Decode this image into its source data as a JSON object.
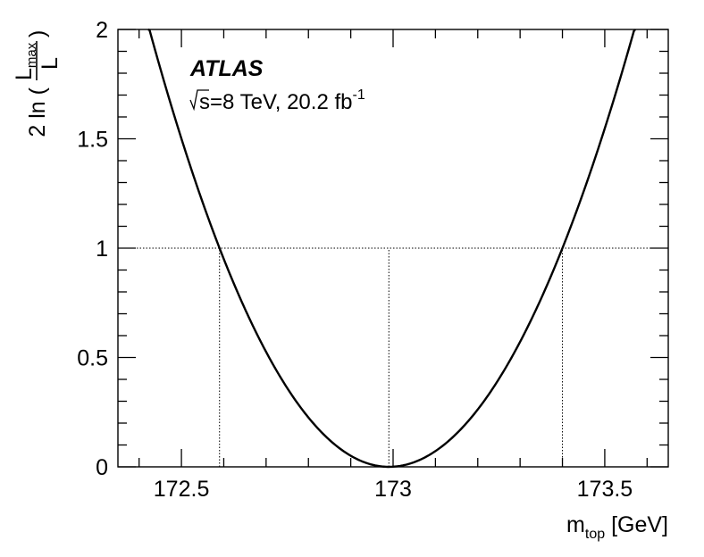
{
  "chart_data": {
    "type": "line",
    "xlabel": {
      "base": "m",
      "sub": "top",
      "rest": " [GeV]"
    },
    "ylabel": {
      "prefix": "2 ln (",
      "numerator_base": "L",
      "numerator_sub": "max",
      "denominator": "L",
      "suffix": ")"
    },
    "xlim": [
      172.35,
      173.65
    ],
    "ylim": [
      0,
      2
    ],
    "x_ticks": [
      {
        "value": 172.5,
        "label": "172.5"
      },
      {
        "value": 173,
        "label": "173"
      },
      {
        "value": 173.5,
        "label": "173.5"
      }
    ],
    "y_ticks": [
      {
        "value": 0,
        "label": "0"
      },
      {
        "value": 0.5,
        "label": "0.5"
      },
      {
        "value": 1,
        "label": "1"
      },
      {
        "value": 1.5,
        "label": "1.5"
      },
      {
        "value": 2,
        "label": "2"
      }
    ],
    "annotations": {
      "experiment": "ATLAS",
      "sqrt_s": "s",
      "energy_text": "=8 TeV, 20.2 fb",
      "energy_sup": "-1"
    },
    "curve": {
      "minimum_x": 172.99,
      "x_at_one_low": 172.59,
      "x_at_one_high": 173.4
    },
    "reference_lines": {
      "horizontal_y": 1,
      "vertical_x": [
        172.59,
        172.99,
        173.4
      ]
    },
    "grid": false,
    "legend": "none",
    "colors": {
      "curve": "#000000",
      "axis": "#000000",
      "reference": "#000000"
    }
  }
}
